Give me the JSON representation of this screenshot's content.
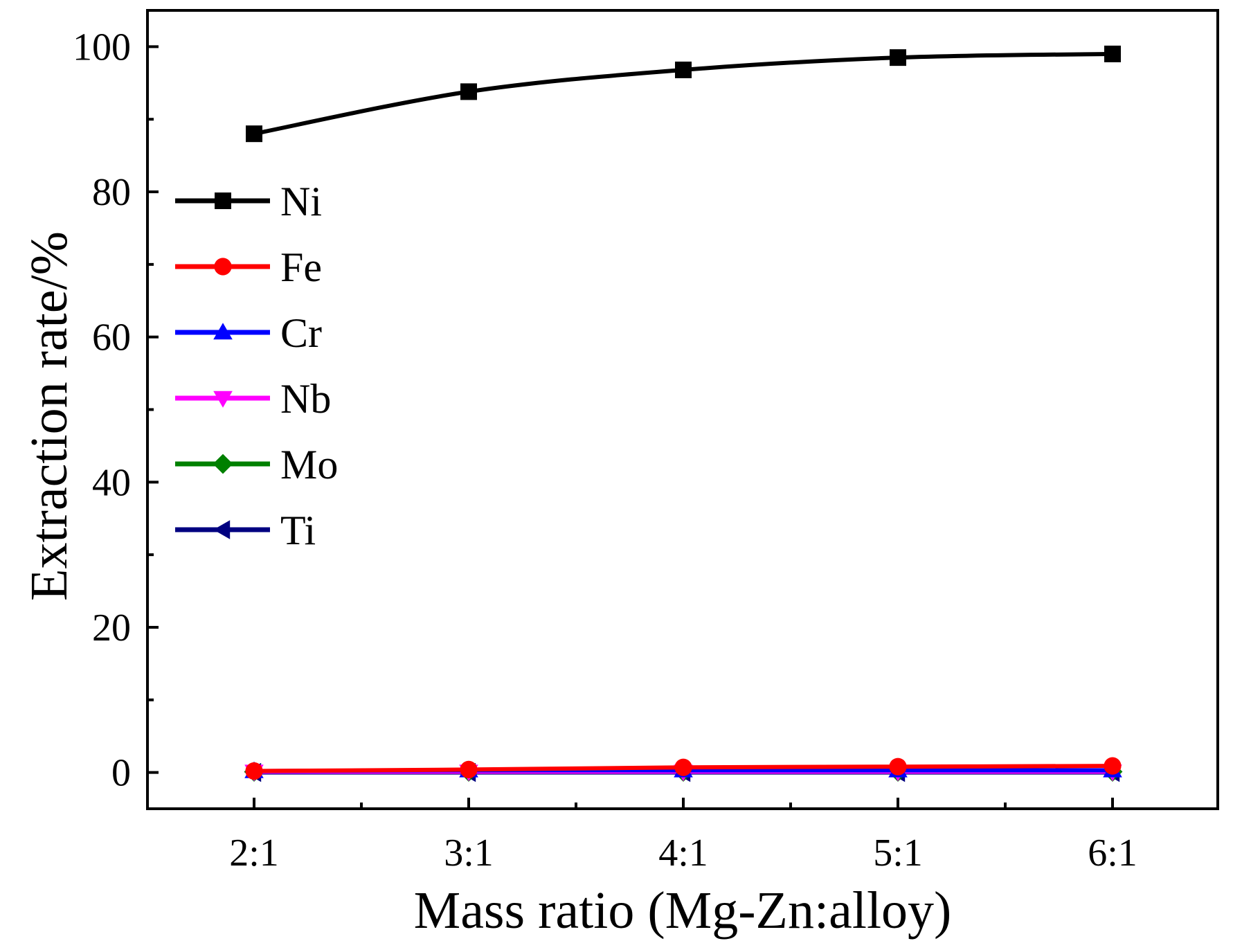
{
  "chart_data": {
    "type": "line",
    "title": "",
    "xlabel": "Mass ratio (Mg-Zn:alloy)",
    "ylabel": "Extraction rate/%",
    "categories": [
      "2:1",
      "3:1",
      "4:1",
      "5:1",
      "6:1"
    ],
    "ylim": [
      -5,
      105
    ],
    "yticks": [
      0,
      20,
      40,
      60,
      80,
      100
    ],
    "grid": false,
    "legend_position": "left",
    "series": [
      {
        "name": "Ni",
        "color": "#000000",
        "marker": "square",
        "values": [
          88.0,
          93.8,
          96.8,
          98.5,
          99.0
        ]
      },
      {
        "name": "Fe",
        "color": "#ff0000",
        "marker": "circle",
        "values": [
          0.2,
          0.4,
          0.7,
          0.8,
          0.9
        ]
      },
      {
        "name": "Cr",
        "color": "#0000ff",
        "marker": "triangle-up",
        "values": [
          0.2,
          0.3,
          0.3,
          0.3,
          0.3
        ]
      },
      {
        "name": "Nb",
        "color": "#ff00ff",
        "marker": "triangle-down",
        "values": [
          0.1,
          0.1,
          0.1,
          0.1,
          0.1
        ]
      },
      {
        "name": "Mo",
        "color": "#008000",
        "marker": "diamond",
        "values": [
          0.1,
          0.1,
          0.1,
          0.1,
          0.1
        ]
      },
      {
        "name": "Ti",
        "color": "#000080",
        "marker": "triangle-left",
        "values": [
          0.0,
          0.0,
          0.0,
          0.0,
          0.0
        ]
      }
    ]
  }
}
